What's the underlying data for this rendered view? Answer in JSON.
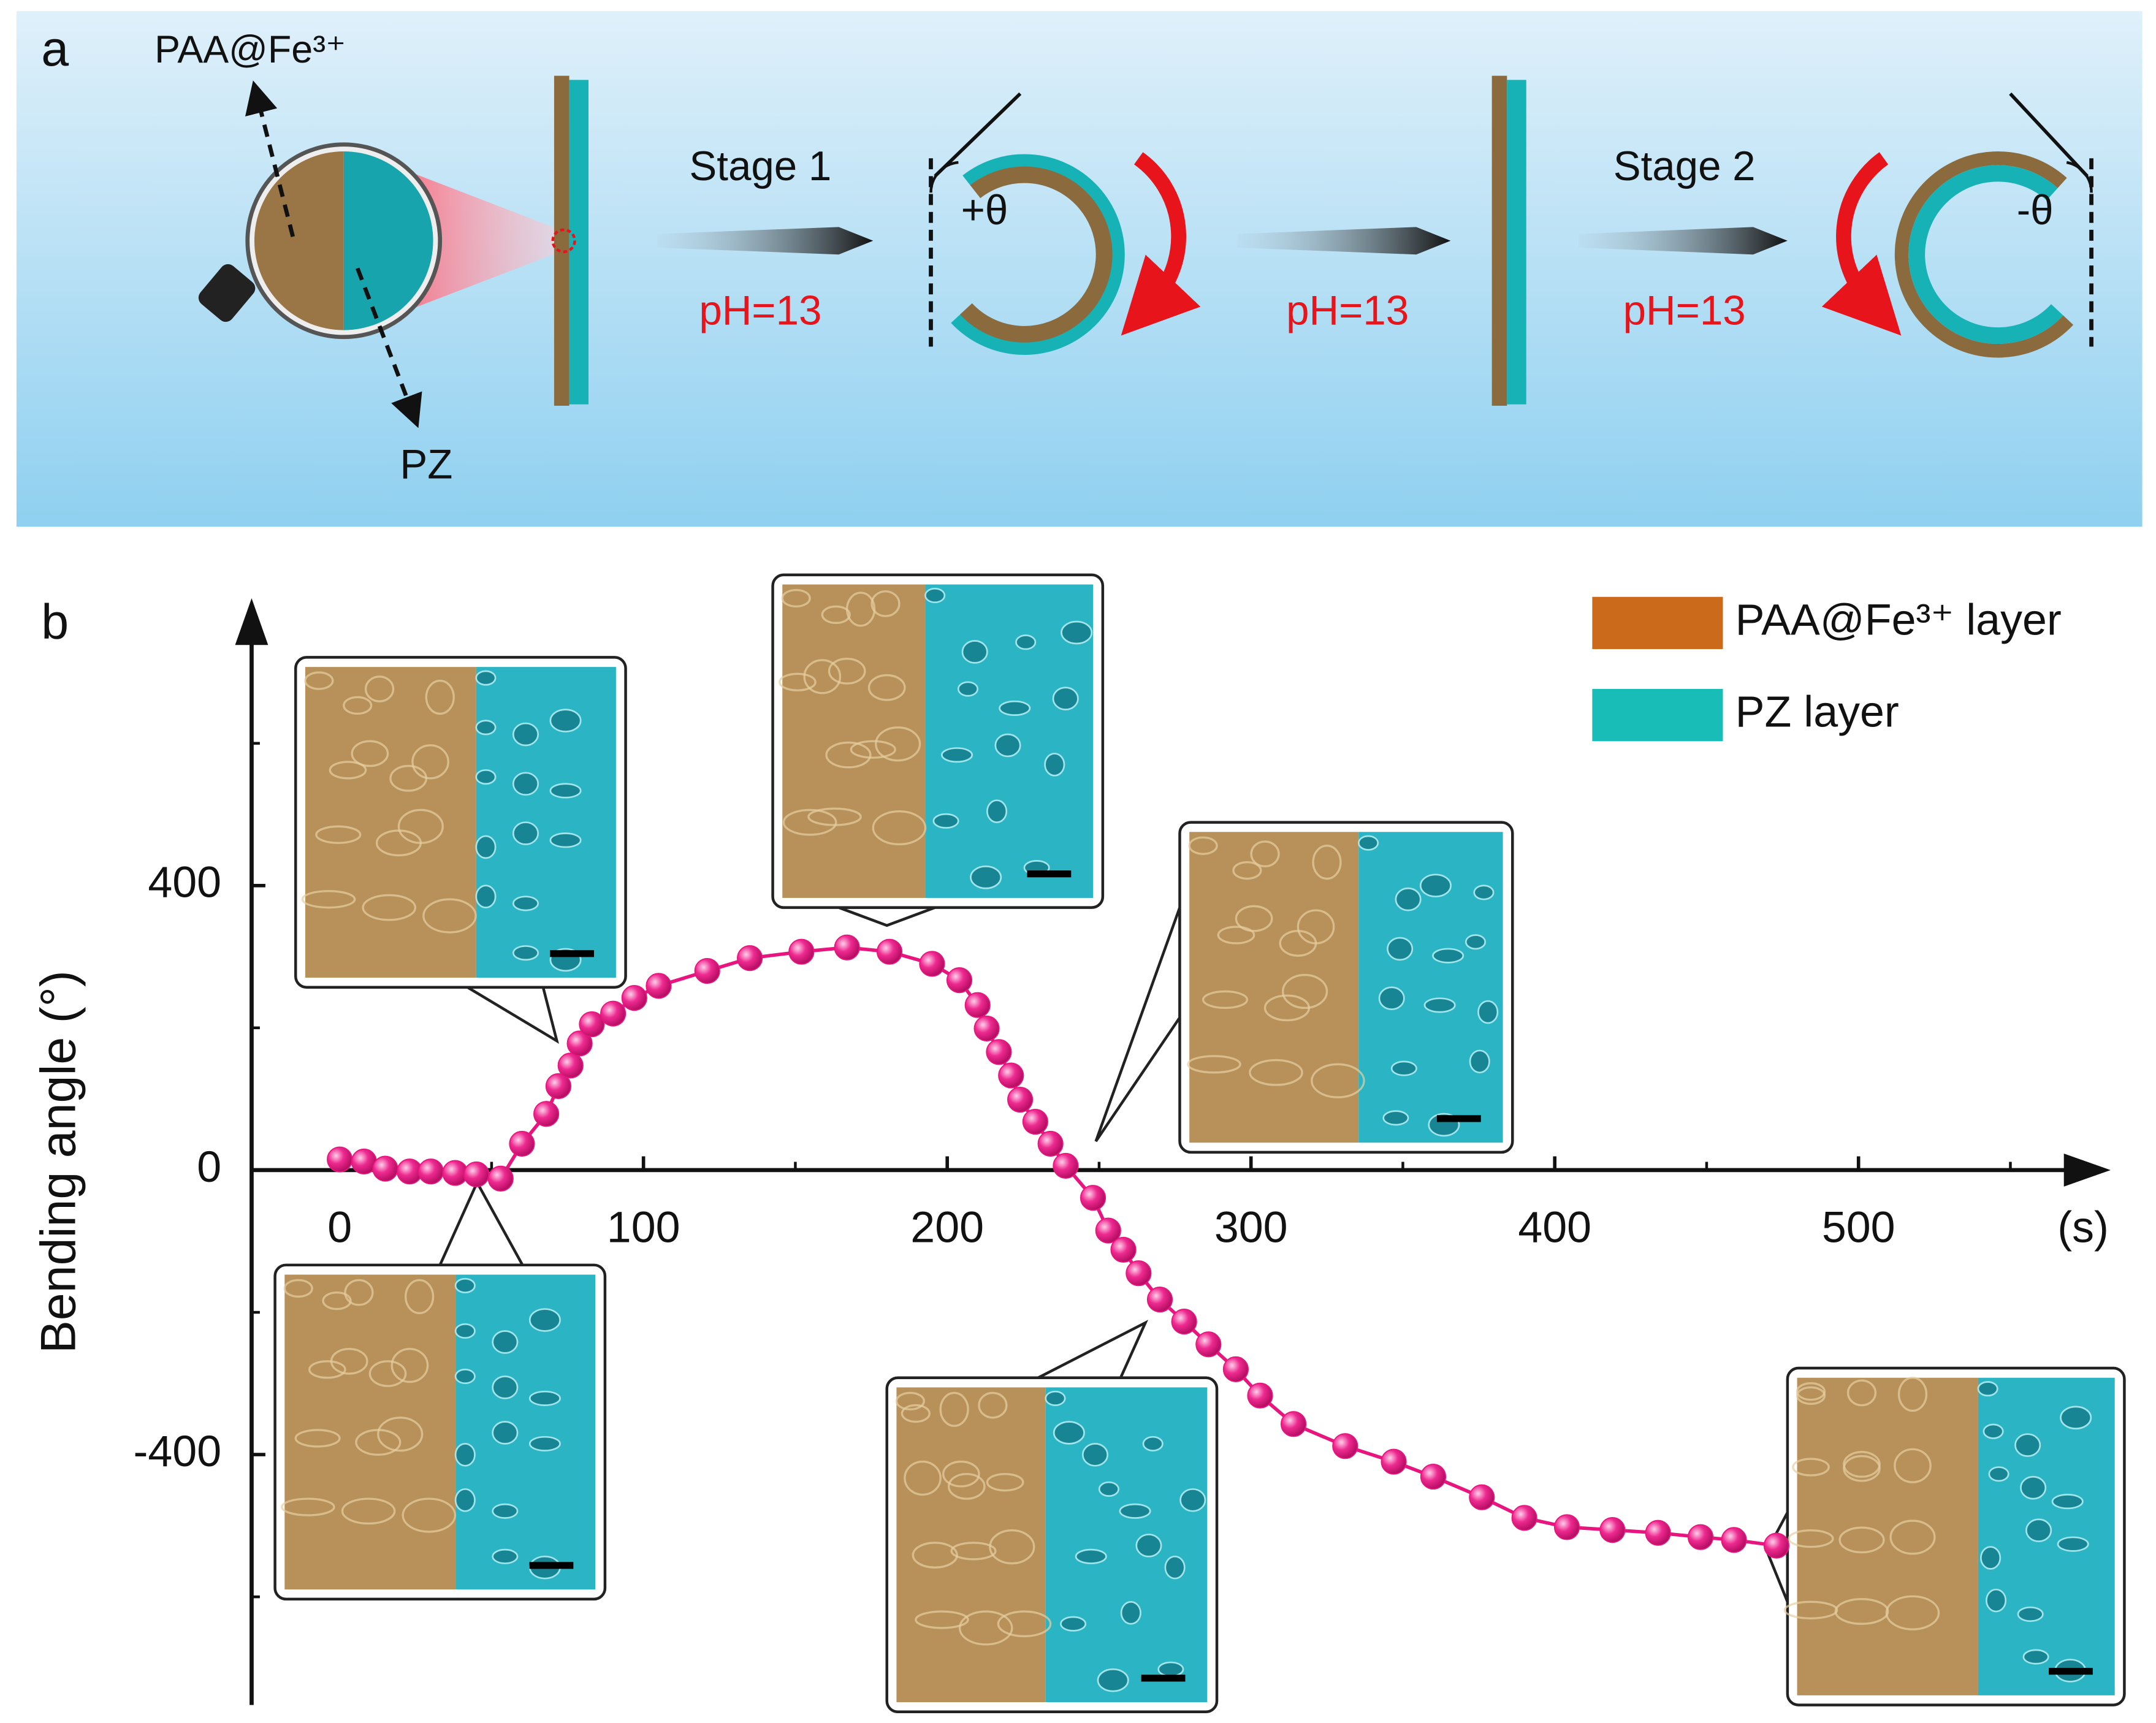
{
  "diagram": {
    "panel_label": "a",
    "layer_top": "PAA@Fe³⁺",
    "layer_bottom": "PZ",
    "stage_1": "Stage 1",
    "stage_2": "Stage 2",
    "condition_1": "pH=13",
    "condition_2": "pH=13",
    "condition_3": "pH=13",
    "angle_positive": "+θ",
    "angle_negative": "-θ"
  },
  "chart_data": {
    "type": "scatter",
    "panel_label": "b",
    "x_label": "(s)",
    "y_label": "Bending angle (°)",
    "xlim": [
      -29,
      583
    ],
    "ylim": [
      -752,
      804
    ],
    "xticks": [
      0,
      100,
      200,
      300,
      400,
      500
    ],
    "xminorticks": [
      50,
      150,
      250,
      350,
      450,
      550
    ],
    "yticks": [
      -400,
      0,
      400
    ],
    "yminorticks": [
      -600,
      -200,
      200,
      600
    ],
    "legend": [
      {
        "name": "PAA@Fe³⁺ layer",
        "color": "#cc6a1b"
      },
      {
        "name": "PZ layer",
        "color": "#17bdb6"
      }
    ],
    "series": [
      {
        "color": "#e8157f",
        "x": [
          0,
          8,
          15,
          23,
          30,
          38,
          45,
          53,
          60,
          68,
          72,
          76,
          79,
          83,
          90,
          97,
          105,
          121,
          135,
          152,
          167,
          181,
          195,
          204,
          210,
          213,
          217,
          221,
          224,
          229,
          234,
          239,
          248,
          253,
          258,
          263,
          270,
          278,
          286,
          295,
          303,
          314,
          331,
          347,
          360,
          376,
          390,
          404,
          419,
          434,
          448,
          459,
          473
        ],
        "values": [
          15,
          12,
          2,
          -2,
          -2,
          -4,
          -6,
          -12,
          37,
          79,
          118,
          147,
          178,
          205,
          220,
          242,
          259,
          280,
          298,
          307,
          313,
          307,
          290,
          267,
          232,
          199,
          166,
          133,
          99,
          68,
          37,
          6,
          -39,
          -85,
          -112,
          -145,
          -182,
          -213,
          -245,
          -280,
          -317,
          -357,
          -388,
          -410,
          -431,
          -460,
          -489,
          -502,
          -506,
          -510,
          -516,
          -520,
          -528
        ]
      }
    ]
  }
}
